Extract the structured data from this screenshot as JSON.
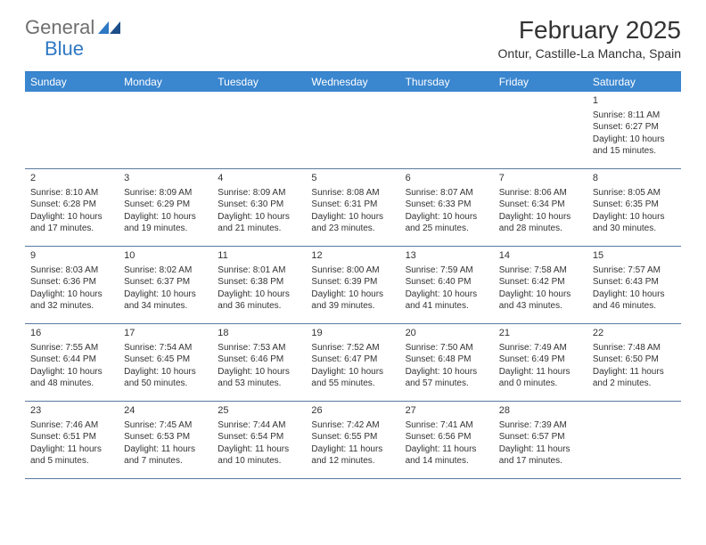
{
  "logo": {
    "general": "General",
    "blue": "Blue"
  },
  "header": {
    "month_title": "February 2025",
    "location": "Ontur, Castille-La Mancha, Spain"
  },
  "colors": {
    "header_bar": "#3a86cf",
    "header_bar_border": "#2f78c4",
    "row_border": "#5a7aa0",
    "weekday_text": "#ffffff",
    "text": "#333333",
    "logo_gray": "#6f6f6f",
    "logo_blue": "#2f78c4",
    "background": "#ffffff"
  },
  "weekdays": [
    "Sunday",
    "Monday",
    "Tuesday",
    "Wednesday",
    "Thursday",
    "Friday",
    "Saturday"
  ],
  "weeks": [
    [
      null,
      null,
      null,
      null,
      null,
      null,
      {
        "num": "1",
        "sunrise": "Sunrise: 8:11 AM",
        "sunset": "Sunset: 6:27 PM",
        "daylight1": "Daylight: 10 hours",
        "daylight2": "and 15 minutes."
      }
    ],
    [
      {
        "num": "2",
        "sunrise": "Sunrise: 8:10 AM",
        "sunset": "Sunset: 6:28 PM",
        "daylight1": "Daylight: 10 hours",
        "daylight2": "and 17 minutes."
      },
      {
        "num": "3",
        "sunrise": "Sunrise: 8:09 AM",
        "sunset": "Sunset: 6:29 PM",
        "daylight1": "Daylight: 10 hours",
        "daylight2": "and 19 minutes."
      },
      {
        "num": "4",
        "sunrise": "Sunrise: 8:09 AM",
        "sunset": "Sunset: 6:30 PM",
        "daylight1": "Daylight: 10 hours",
        "daylight2": "and 21 minutes."
      },
      {
        "num": "5",
        "sunrise": "Sunrise: 8:08 AM",
        "sunset": "Sunset: 6:31 PM",
        "daylight1": "Daylight: 10 hours",
        "daylight2": "and 23 minutes."
      },
      {
        "num": "6",
        "sunrise": "Sunrise: 8:07 AM",
        "sunset": "Sunset: 6:33 PM",
        "daylight1": "Daylight: 10 hours",
        "daylight2": "and 25 minutes."
      },
      {
        "num": "7",
        "sunrise": "Sunrise: 8:06 AM",
        "sunset": "Sunset: 6:34 PM",
        "daylight1": "Daylight: 10 hours",
        "daylight2": "and 28 minutes."
      },
      {
        "num": "8",
        "sunrise": "Sunrise: 8:05 AM",
        "sunset": "Sunset: 6:35 PM",
        "daylight1": "Daylight: 10 hours",
        "daylight2": "and 30 minutes."
      }
    ],
    [
      {
        "num": "9",
        "sunrise": "Sunrise: 8:03 AM",
        "sunset": "Sunset: 6:36 PM",
        "daylight1": "Daylight: 10 hours",
        "daylight2": "and 32 minutes."
      },
      {
        "num": "10",
        "sunrise": "Sunrise: 8:02 AM",
        "sunset": "Sunset: 6:37 PM",
        "daylight1": "Daylight: 10 hours",
        "daylight2": "and 34 minutes."
      },
      {
        "num": "11",
        "sunrise": "Sunrise: 8:01 AM",
        "sunset": "Sunset: 6:38 PM",
        "daylight1": "Daylight: 10 hours",
        "daylight2": "and 36 minutes."
      },
      {
        "num": "12",
        "sunrise": "Sunrise: 8:00 AM",
        "sunset": "Sunset: 6:39 PM",
        "daylight1": "Daylight: 10 hours",
        "daylight2": "and 39 minutes."
      },
      {
        "num": "13",
        "sunrise": "Sunrise: 7:59 AM",
        "sunset": "Sunset: 6:40 PM",
        "daylight1": "Daylight: 10 hours",
        "daylight2": "and 41 minutes."
      },
      {
        "num": "14",
        "sunrise": "Sunrise: 7:58 AM",
        "sunset": "Sunset: 6:42 PM",
        "daylight1": "Daylight: 10 hours",
        "daylight2": "and 43 minutes."
      },
      {
        "num": "15",
        "sunrise": "Sunrise: 7:57 AM",
        "sunset": "Sunset: 6:43 PM",
        "daylight1": "Daylight: 10 hours",
        "daylight2": "and 46 minutes."
      }
    ],
    [
      {
        "num": "16",
        "sunrise": "Sunrise: 7:55 AM",
        "sunset": "Sunset: 6:44 PM",
        "daylight1": "Daylight: 10 hours",
        "daylight2": "and 48 minutes."
      },
      {
        "num": "17",
        "sunrise": "Sunrise: 7:54 AM",
        "sunset": "Sunset: 6:45 PM",
        "daylight1": "Daylight: 10 hours",
        "daylight2": "and 50 minutes."
      },
      {
        "num": "18",
        "sunrise": "Sunrise: 7:53 AM",
        "sunset": "Sunset: 6:46 PM",
        "daylight1": "Daylight: 10 hours",
        "daylight2": "and 53 minutes."
      },
      {
        "num": "19",
        "sunrise": "Sunrise: 7:52 AM",
        "sunset": "Sunset: 6:47 PM",
        "daylight1": "Daylight: 10 hours",
        "daylight2": "and 55 minutes."
      },
      {
        "num": "20",
        "sunrise": "Sunrise: 7:50 AM",
        "sunset": "Sunset: 6:48 PM",
        "daylight1": "Daylight: 10 hours",
        "daylight2": "and 57 minutes."
      },
      {
        "num": "21",
        "sunrise": "Sunrise: 7:49 AM",
        "sunset": "Sunset: 6:49 PM",
        "daylight1": "Daylight: 11 hours",
        "daylight2": "and 0 minutes."
      },
      {
        "num": "22",
        "sunrise": "Sunrise: 7:48 AM",
        "sunset": "Sunset: 6:50 PM",
        "daylight1": "Daylight: 11 hours",
        "daylight2": "and 2 minutes."
      }
    ],
    [
      {
        "num": "23",
        "sunrise": "Sunrise: 7:46 AM",
        "sunset": "Sunset: 6:51 PM",
        "daylight1": "Daylight: 11 hours",
        "daylight2": "and 5 minutes."
      },
      {
        "num": "24",
        "sunrise": "Sunrise: 7:45 AM",
        "sunset": "Sunset: 6:53 PM",
        "daylight1": "Daylight: 11 hours",
        "daylight2": "and 7 minutes."
      },
      {
        "num": "25",
        "sunrise": "Sunrise: 7:44 AM",
        "sunset": "Sunset: 6:54 PM",
        "daylight1": "Daylight: 11 hours",
        "daylight2": "and 10 minutes."
      },
      {
        "num": "26",
        "sunrise": "Sunrise: 7:42 AM",
        "sunset": "Sunset: 6:55 PM",
        "daylight1": "Daylight: 11 hours",
        "daylight2": "and 12 minutes."
      },
      {
        "num": "27",
        "sunrise": "Sunrise: 7:41 AM",
        "sunset": "Sunset: 6:56 PM",
        "daylight1": "Daylight: 11 hours",
        "daylight2": "and 14 minutes."
      },
      {
        "num": "28",
        "sunrise": "Sunrise: 7:39 AM",
        "sunset": "Sunset: 6:57 PM",
        "daylight1": "Daylight: 11 hours",
        "daylight2": "and 17 minutes."
      },
      null
    ]
  ]
}
